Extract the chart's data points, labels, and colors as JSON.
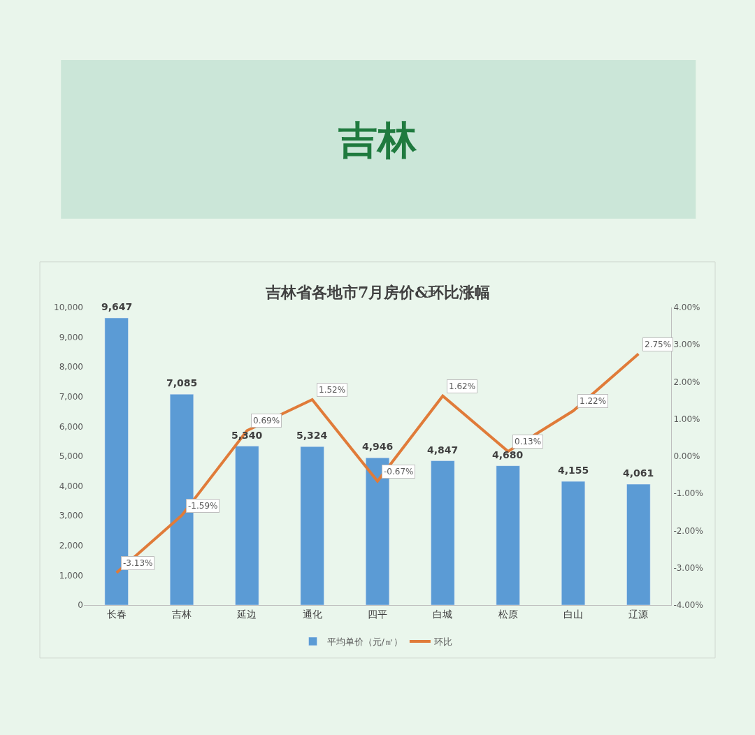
{
  "chart_data": {
    "type": "bar",
    "title": "吉林",
    "subtitle": "吉林省各地市7月房价&环比涨幅",
    "categories": [
      "长春",
      "吉林",
      "延边",
      "通化",
      "四平",
      "白城",
      "松原",
      "白山",
      "辽源"
    ],
    "series": [
      {
        "name": "平均单价（元/㎡）",
        "color": "#5b9bd5",
        "values": [
          9647,
          7085,
          5340,
          5324,
          4946,
          4847,
          4680,
          4155,
          4061
        ],
        "value_labels": [
          "9,647",
          "7,085",
          "5,340",
          "5,324",
          "4,946",
          "4,847",
          "4,680",
          "4,155",
          "4,061"
        ]
      },
      {
        "name": "环比",
        "type": "line",
        "axis": "y2",
        "color": "#e07b39",
        "values": [
          -3.13,
          -1.59,
          0.69,
          1.52,
          -0.67,
          1.62,
          0.13,
          1.22,
          2.75
        ],
        "value_labels": [
          "-3.13%",
          "-1.59%",
          "0.69%",
          "1.52%",
          "-0.67%",
          "1.62%",
          "0.13%",
          "1.22%",
          "2.75%"
        ]
      }
    ],
    "ylim": [
      0,
      10000
    ],
    "yticks": [
      0,
      {
        "value": 1000,
        "label": "1,000"
      },
      {
        "value": 2000,
        "label": "2,000"
      },
      {
        "value": 3000,
        "label": "3,000"
      },
      {
        "value": 4000,
        "label": "4,000"
      },
      {
        "value": 5000,
        "label": "5,000"
      },
      {
        "value": 6000,
        "label": "6,000"
      },
      {
        "value": 7000,
        "label": "7,000"
      },
      {
        "value": 8000,
        "label": "8,000"
      },
      {
        "value": 9000,
        "label": "9,000"
      },
      {
        "value": 10000,
        "label": "10,000"
      }
    ],
    "y2lim": [
      -4,
      4
    ],
    "y2ticks": [
      {
        "value": -4,
        "label": "-4.00%"
      },
      {
        "value": -3,
        "label": "-3.00%"
      },
      {
        "value": -2,
        "label": "-2.00%"
      },
      {
        "value": -1,
        "label": "-1.00%"
      },
      {
        "value": 0,
        "label": "0.00%"
      },
      {
        "value": 1,
        "label": "1.00%"
      },
      {
        "value": 2,
        "label": "2.00%"
      },
      {
        "value": 3,
        "label": "3.00%"
      },
      {
        "value": 4,
        "label": "4.00%"
      }
    ],
    "legend": "bottom",
    "grid": false,
    "marker": "none",
    "line_style": "solid"
  }
}
